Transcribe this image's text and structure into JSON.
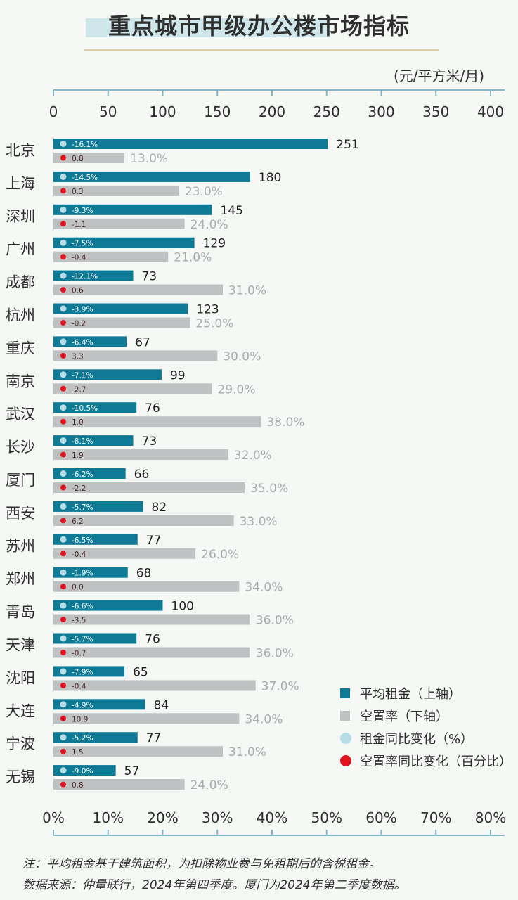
{
  "title": "重点城市甲级办公楼市场指标",
  "unit": "(元/平方米/月)",
  "legend": {
    "rent": "平均租金（上轴）",
    "vacancy": "空置率（下轴）",
    "rent_change": "租金同比变化（%）",
    "vacancy_change": "空置率同比变化（百分比）"
  },
  "notes": {
    "line1": "注：平均租金基于建筑面积，为扣除物业费与免租期后的含税租金。",
    "line2": "数据来源：仲量联行，2024年第四季度。厦门为2024年第二季度数据。"
  },
  "colors": {
    "rent_bar": "#0f7a96",
    "vacancy_bar": "#bfc1c2",
    "rent_dot": "#b9dde6",
    "vacancy_dot": "#e0141e",
    "axis": "#7fb7c8"
  },
  "chart_data": {
    "type": "bar",
    "orientation": "horizontal",
    "categories": [
      "北京",
      "上海",
      "深圳",
      "广州",
      "成都",
      "杭州",
      "重庆",
      "南京",
      "武汉",
      "长沙",
      "厦门",
      "西安",
      "苏州",
      "郑州",
      "青岛",
      "天津",
      "沈阳",
      "大连",
      "宁波",
      "无锡"
    ],
    "series": [
      {
        "name": "平均租金（上轴）",
        "values": [
          251,
          180,
          145,
          129,
          73,
          123,
          67,
          99,
          76,
          73,
          66,
          82,
          77,
          68,
          100,
          76,
          65,
          84,
          77,
          57
        ],
        "labels": [
          "251",
          "180",
          "145",
          "129",
          "73",
          "123",
          "67",
          "99",
          "76",
          "73",
          "66",
          "82",
          "77",
          "68",
          "100",
          "76",
          "65",
          "84",
          "77",
          "57"
        ],
        "change_labels": [
          "-16.1%",
          "-14.5%",
          "-9.3%",
          "-7.5%",
          "-12.1%",
          "-3.9%",
          "-6.4%",
          "-7.1%",
          "-10.5%",
          "-8.1%",
          "-6.2%",
          "-5.7%",
          "-6.5%",
          "-1.9%",
          "-6.6%",
          "-5.7%",
          "-7.9%",
          "-4.9%",
          "-5.2%",
          "-9.0%"
        ]
      },
      {
        "name": "空置率（下轴）",
        "values": [
          13,
          23,
          24,
          21,
          31,
          25,
          30,
          29,
          38,
          32,
          35,
          33,
          26,
          34,
          36,
          36,
          37,
          34,
          31,
          24
        ],
        "labels": [
          "13.0%",
          "23.0%",
          "24.0%",
          "21.0%",
          "31.0%",
          "25.0%",
          "30.0%",
          "29.0%",
          "38.0%",
          "32.0%",
          "35.0%",
          "33.0%",
          "26.0%",
          "34.0%",
          "36.0%",
          "36.0%",
          "37.0%",
          "34.0%",
          "31.0%",
          "24.0%"
        ],
        "change_labels": [
          "0.8",
          "0.3",
          "-1.1",
          "-0.4",
          "0.6",
          "-0.2",
          "3.3",
          "-2.7",
          "1.0",
          "1.9",
          "-2.2",
          "6.2",
          "-0.4",
          "0.0",
          "-3.5",
          "-0.7",
          "-0.4",
          "10.9",
          "1.5",
          "0.8"
        ]
      }
    ],
    "top_axis": {
      "range": [
        0,
        400
      ],
      "ticks": [
        "0",
        "50",
        "100",
        "150",
        "200",
        "250",
        "300",
        "350",
        "400"
      ]
    },
    "bottom_axis": {
      "range": [
        0,
        80
      ],
      "ticks": [
        "0%",
        "10%",
        "20%",
        "30%",
        "40%",
        "50%",
        "60%",
        "70%",
        "80%"
      ]
    },
    "legend_position": "bottom-right"
  }
}
